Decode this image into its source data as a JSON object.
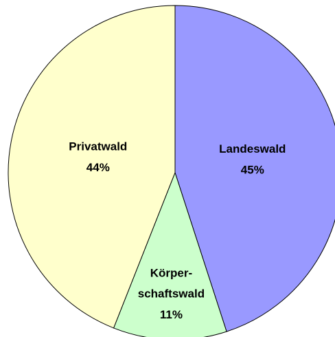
{
  "chart_data": {
    "type": "pie",
    "categories": [
      "Landeswald",
      "Körper-\nschaftswald",
      "Privatwald"
    ],
    "values": [
      45,
      11,
      44
    ],
    "value_labels": [
      "45%",
      "11%",
      "44%"
    ],
    "colors": [
      "#9999ff",
      "#ccffcc",
      "#ffffcc"
    ]
  }
}
